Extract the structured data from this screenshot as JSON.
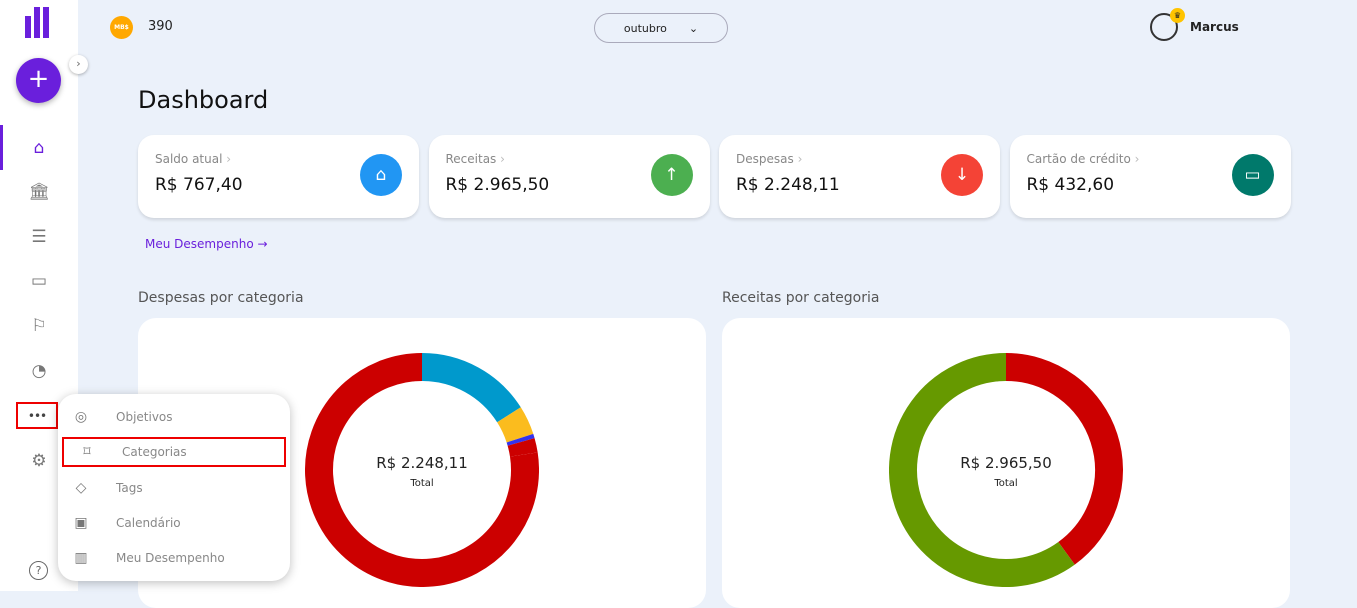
{
  "sidebar": {
    "fab_label": "+",
    "more_label": "•••",
    "help_label": "?",
    "nav": [
      "home-icon",
      "bank-icon",
      "list-icon",
      "card-icon",
      "flag-icon",
      "pie-chart-icon",
      "gear-icon"
    ]
  },
  "topbar": {
    "coin_label": "MB$",
    "points": "390",
    "month": "outubro",
    "user_name": "Marcus"
  },
  "page_title": "Dashboard",
  "cards": [
    {
      "label": "Saldo atual",
      "value": "R$ 767,40",
      "color": "#2196f3",
      "icon": "⌂"
    },
    {
      "label": "Receitas",
      "value": "R$ 2.965,50",
      "color": "#4caf50",
      "icon": "↑"
    },
    {
      "label": "Despesas",
      "value": "R$ 2.248,11",
      "color": "#f44336",
      "icon": "↓"
    },
    {
      "label": "Cartão de crédito",
      "value": "R$ 432,60",
      "color": "#00796b",
      "icon": "▭"
    }
  ],
  "performance_link": "Meu Desempenho",
  "menu": [
    {
      "label": "Objetivos",
      "icon": "◎"
    },
    {
      "label": "Categorias",
      "icon": "⌑"
    },
    {
      "label": "Tags",
      "icon": "◇"
    },
    {
      "label": "Calendário",
      "icon": "▣"
    },
    {
      "label": "Meu Desempenho",
      "icon": "▥"
    }
  ],
  "chart_data": [
    {
      "type": "pie",
      "title": "Despesas por categoria",
      "center_value": "R$ 2.248,11",
      "center_label": "Total",
      "unit": "percent",
      "slices": [
        {
          "value": 16,
          "color": "#0099cc"
        },
        {
          "value": 4,
          "color": "#fbbc1e"
        },
        {
          "value": 0.6,
          "color": "#3333ee"
        },
        {
          "value": 2,
          "color": "#cc0000"
        },
        {
          "value": 77.4,
          "color": "#cc0000"
        }
      ]
    },
    {
      "type": "pie",
      "title": "Receitas por categoria",
      "center_value": "R$ 2.965,50",
      "center_label": "Total",
      "unit": "percent",
      "slices": [
        {
          "value": 40,
          "color": "#cc0000"
        },
        {
          "value": 60,
          "color": "#669900"
        }
      ]
    }
  ]
}
